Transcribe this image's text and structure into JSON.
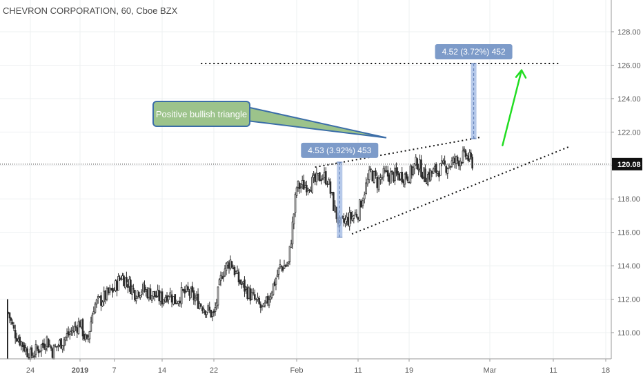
{
  "header": {
    "title": "CHEVRON CORPORATION, 60, Cboe BZX"
  },
  "colors": {
    "candle": "#2b2b2b",
    "grid": "#eef0f2",
    "axis_text": "#5a5a5a",
    "last_price_bg": "#111111",
    "measure_fill": "#7d9bc9",
    "measure_line": "#9cb6e2",
    "callout_fill": "#9cc38b",
    "callout_border": "#3c6ea8",
    "arrow": "#22dd22"
  },
  "chart_data": {
    "type": "candlestick",
    "symbol": "CHEVRON CORPORATION",
    "interval": "60",
    "exchange": "Cboe BZX",
    "ylim": [
      108.5,
      129.5
    ],
    "y_ticks": [
      "110.00",
      "112.00",
      "114.00",
      "116.00",
      "118.00",
      "120.00",
      "122.00",
      "124.00",
      "126.00",
      "128.00"
    ],
    "x_ticks": [
      "24",
      "2019",
      "7",
      "14",
      "22",
      "Feb",
      "11",
      "19",
      "Mar",
      "11",
      "18"
    ],
    "last_price": {
      "label": "120.08",
      "value": 120.08
    },
    "price_path": [
      {
        "date": "2018-12-20",
        "price": 111.2
      },
      {
        "date": "2018-12-21",
        "price": 110.1
      },
      {
        "date": "2018-12-24",
        "price": 108.6
      },
      {
        "date": "2018-12-26",
        "price": 109.2
      },
      {
        "date": "2018-12-27",
        "price": 109.6
      },
      {
        "date": "2018-12-28",
        "price": 108.9
      },
      {
        "date": "2019-01-02",
        "price": 110.6
      },
      {
        "date": "2019-01-03",
        "price": 109.3
      },
      {
        "date": "2019-01-04",
        "price": 111.6
      },
      {
        "date": "2019-01-07",
        "price": 112.6
      },
      {
        "date": "2019-01-08",
        "price": 113.4
      },
      {
        "date": "2019-01-09",
        "price": 113.0
      },
      {
        "date": "2019-01-10",
        "price": 112.4
      },
      {
        "date": "2019-01-11",
        "price": 112.6
      },
      {
        "date": "2019-01-14",
        "price": 112.0
      },
      {
        "date": "2019-01-15",
        "price": 112.4
      },
      {
        "date": "2019-01-16",
        "price": 111.9
      },
      {
        "date": "2019-01-17",
        "price": 112.3
      },
      {
        "date": "2019-01-18",
        "price": 112.4
      },
      {
        "date": "2019-01-22",
        "price": 111.0
      },
      {
        "date": "2019-01-23",
        "price": 113.6
      },
      {
        "date": "2019-01-24",
        "price": 114.3
      },
      {
        "date": "2019-01-25",
        "price": 113.1
      },
      {
        "date": "2019-01-28",
        "price": 111.3
      },
      {
        "date": "2019-01-29",
        "price": 112.6
      },
      {
        "date": "2019-01-30",
        "price": 113.9
      },
      {
        "date": "2019-01-31",
        "price": 114.1
      },
      {
        "date": "2019-02-01",
        "price": 118.7
      },
      {
        "date": "2019-02-04",
        "price": 119.0
      },
      {
        "date": "2019-02-05",
        "price": 119.4
      },
      {
        "date": "2019-02-06",
        "price": 119.2
      },
      {
        "date": "2019-02-07",
        "price": 117.6
      },
      {
        "date": "2019-02-08",
        "price": 116.4
      },
      {
        "date": "2019-02-11",
        "price": 117.2
      },
      {
        "date": "2019-02-12",
        "price": 118.5
      },
      {
        "date": "2019-02-13",
        "price": 119.6
      },
      {
        "date": "2019-02-14",
        "price": 119.0
      },
      {
        "date": "2019-02-15",
        "price": 119.4
      },
      {
        "date": "2019-02-19",
        "price": 119.4
      },
      {
        "date": "2019-02-20",
        "price": 120.2
      },
      {
        "date": "2019-02-21",
        "price": 119.3
      },
      {
        "date": "2019-02-22",
        "price": 119.6
      },
      {
        "date": "2019-02-25",
        "price": 120.3
      },
      {
        "date": "2019-02-26",
        "price": 120.6
      },
      {
        "date": "2019-02-27",
        "price": 120.1
      }
    ],
    "measurements": [
      {
        "label": "4.53 (3.92%) 453",
        "from": 115.7,
        "to": 120.2
      },
      {
        "label": "4.52 (3.72%) 452",
        "from": 121.6,
        "to": 126.1
      }
    ],
    "annotations": {
      "callout": "Positive bullish triangle",
      "target_level": 126.1
    }
  }
}
